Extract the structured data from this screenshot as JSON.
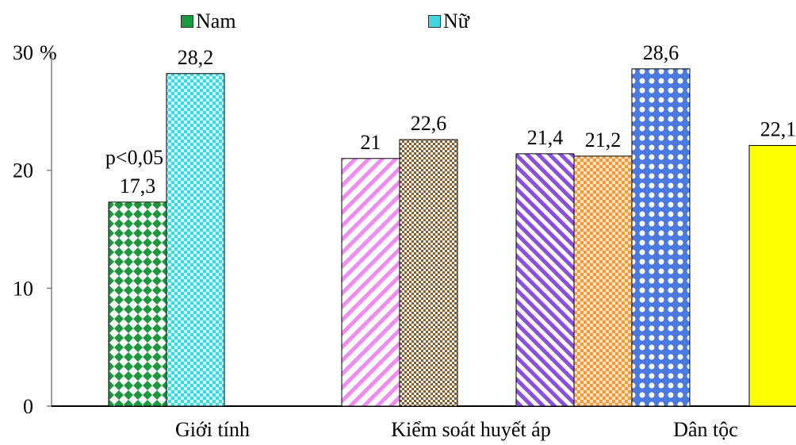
{
  "chart_data": {
    "type": "bar",
    "unit": "%",
    "ylim": [
      0,
      30
    ],
    "yticks": [
      0,
      10,
      20,
      30
    ],
    "legend": [
      {
        "name": "Nam",
        "pattern": "green-diamond"
      },
      {
        "name": "Nữ",
        "pattern": "cyan-check"
      }
    ],
    "groups": [
      {
        "label": "Giới tính",
        "note": "p<0,05",
        "bars": [
          {
            "value": 17.3,
            "label": "17,3",
            "color": "#1a9a3c",
            "pattern": "diamonds"
          },
          {
            "value": 28.2,
            "label": "28,2",
            "color": "#3fd7e0",
            "pattern": "checker"
          }
        ]
      },
      {
        "label": "Kiểm soát huyết áp",
        "bars": [
          {
            "value": 21,
            "label": "21",
            "color": "#f08cf0",
            "pattern": "diag"
          },
          {
            "value": 22.6,
            "label": "22,6",
            "color": "#8b5a2b",
            "pattern": "dots"
          },
          {
            "value": 21.4,
            "label": "21,4",
            "color": "#8a4fe0",
            "pattern": "diag"
          },
          {
            "value": 21.2,
            "label": "21,2",
            "color": "#f39a3c",
            "pattern": "checker"
          }
        ]
      },
      {
        "label": "Dân tộc",
        "bars": [
          {
            "value": 28.6,
            "label": "28,6",
            "color": "#4a7ae0",
            "pattern": "circles"
          },
          {
            "value": 22.1,
            "label": "22,1",
            "color": "#ffff00",
            "pattern": "solid"
          }
        ]
      }
    ]
  }
}
